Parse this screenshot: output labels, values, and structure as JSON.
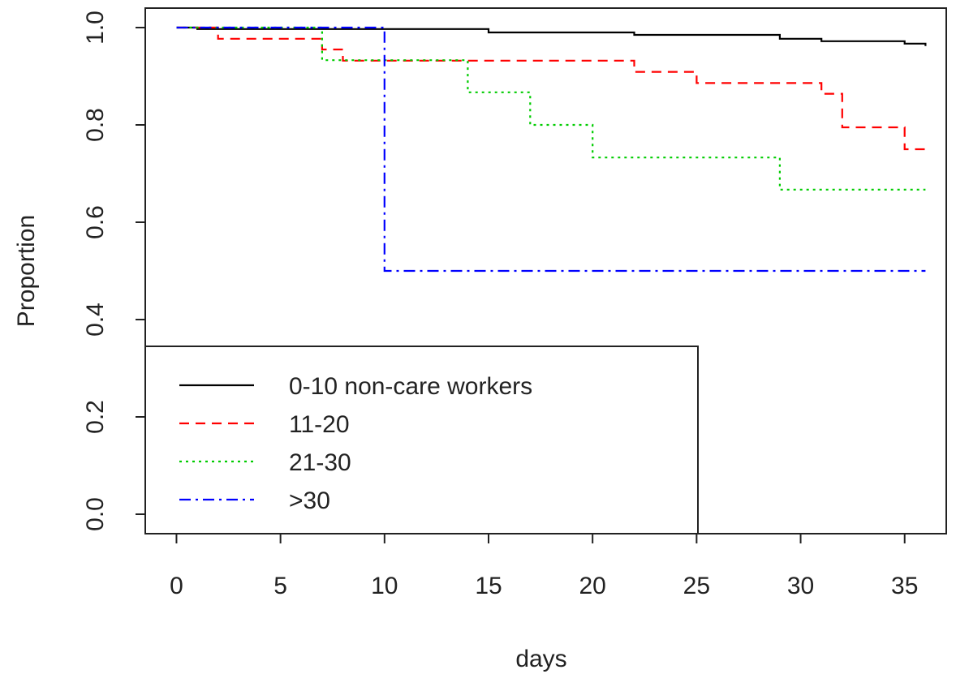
{
  "chart_data": {
    "type": "line",
    "step": true,
    "title": "",
    "xlabel": "days",
    "ylabel": "Proportion",
    "xlim": [
      -1.5,
      37
    ],
    "ylim": [
      -0.04,
      1.04
    ],
    "xticks": [
      0,
      5,
      10,
      15,
      20,
      25,
      30,
      35
    ],
    "yticks": [
      0.0,
      0.2,
      0.4,
      0.6,
      0.8,
      1.0
    ],
    "xtick_labels": [
      "0",
      "5",
      "10",
      "15",
      "20",
      "25",
      "30",
      "35"
    ],
    "ytick_labels": [
      "0.0",
      "0.2",
      "0.4",
      "0.6",
      "0.8",
      "1.0"
    ],
    "grid": false,
    "legend_position": "bottom-left",
    "series": [
      {
        "name": "0-10 non-care workers",
        "color": "#000000",
        "dash": "solid",
        "x": [
          0,
          1,
          15,
          22,
          29,
          31,
          35,
          36
        ],
        "y": [
          1.0,
          0.997,
          0.99,
          0.985,
          0.977,
          0.972,
          0.967,
          0.962
        ]
      },
      {
        "name": "11-20",
        "color": "#ff0000",
        "dash": "dashed",
        "x": [
          0,
          2,
          7,
          8,
          22,
          25,
          31,
          32,
          35,
          36
        ],
        "y": [
          1.0,
          0.977,
          0.955,
          0.932,
          0.909,
          0.886,
          0.864,
          0.795,
          0.75,
          0.75
        ]
      },
      {
        "name": "21-30",
        "color": "#00cc00",
        "dash": "dotted",
        "x": [
          0,
          7,
          14,
          17,
          20,
          29,
          36
        ],
        "y": [
          1.0,
          0.933,
          0.867,
          0.8,
          0.733,
          0.667,
          0.667
        ]
      },
      {
        "name": ">30",
        "color": "#0000ff",
        "dash": "dashdot",
        "x": [
          0,
          10,
          36
        ],
        "y": [
          1.0,
          0.5,
          0.5
        ]
      }
    ]
  }
}
